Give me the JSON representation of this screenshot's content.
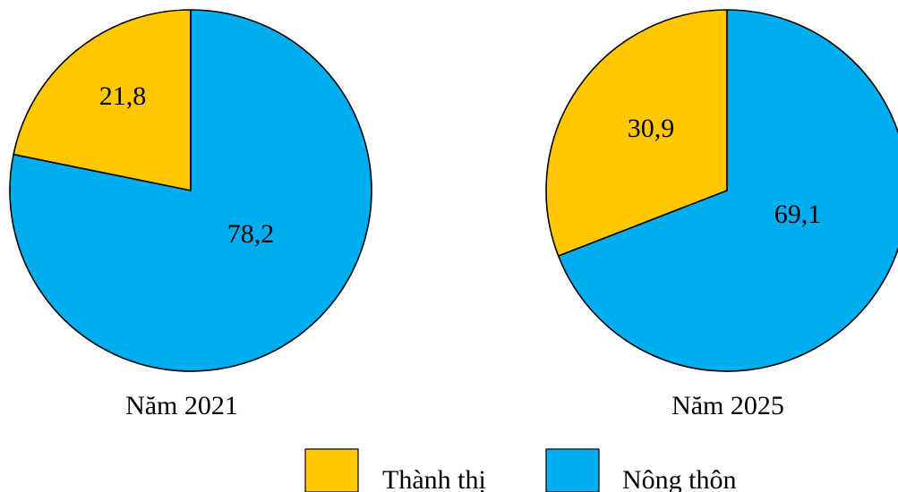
{
  "chart_data": [
    {
      "type": "pie",
      "title": "Năm 2021",
      "categories": [
        "Thành thị",
        "Nông thôn"
      ],
      "values": [
        21.8,
        78.2
      ],
      "value_labels": [
        "21,8",
        "78,2"
      ],
      "colors": [
        "#FFC800",
        "#00AEEF"
      ]
    },
    {
      "type": "pie",
      "title": "Năm 2025",
      "categories": [
        "Thành thị",
        "Nông thôn"
      ],
      "values": [
        30.9,
        69.1
      ],
      "value_labels": [
        "30,9",
        "69,1"
      ],
      "colors": [
        "#FFC800",
        "#00AEEF"
      ]
    }
  ],
  "legend": {
    "items": [
      {
        "label": "Thành thị",
        "color": "#FFC800"
      },
      {
        "label": "Nông thôn",
        "color": "#00AEEF"
      }
    ]
  }
}
